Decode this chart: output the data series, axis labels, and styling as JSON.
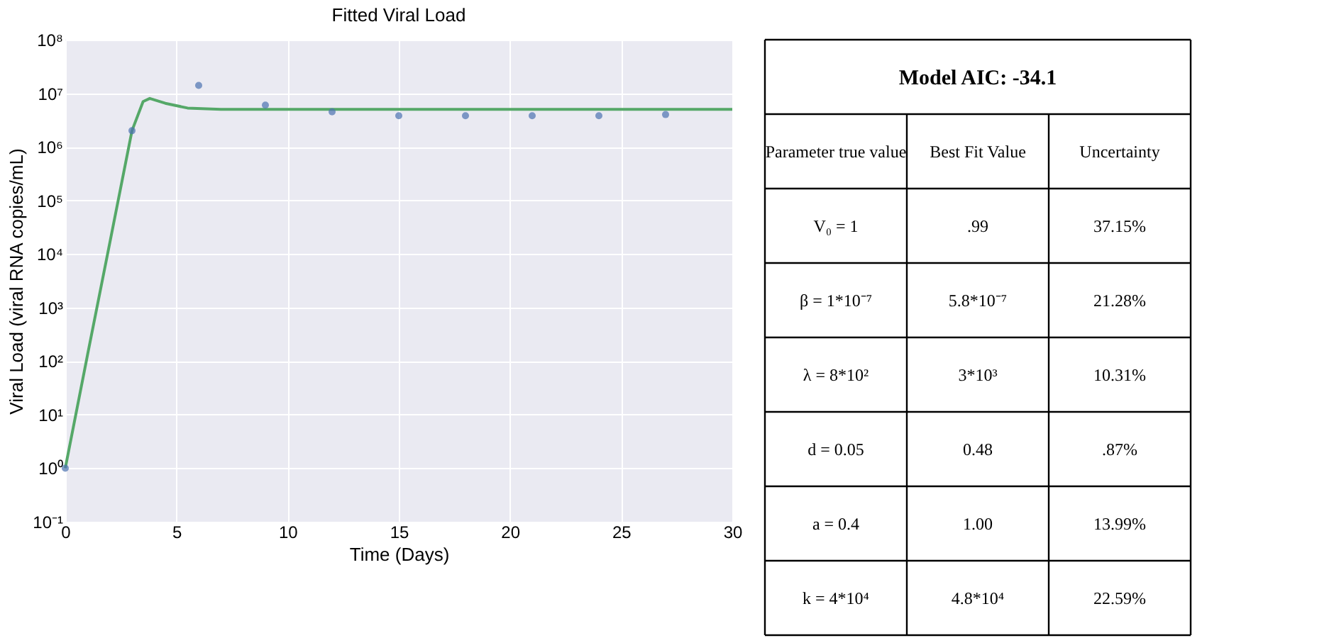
{
  "chart_data": [
    {
      "type": "line",
      "title": "Fitted Viral Load",
      "xlabel": "Time (Days)",
      "ylabel": "Viral Load (viral RNA copies/mL)",
      "log": true,
      "grid": true,
      "xlim": [
        0,
        30
      ],
      "xticks": [
        0,
        5,
        10,
        15,
        20,
        25,
        30
      ],
      "ylim": [
        0.1,
        100000000
      ],
      "yticks": [
        {
          "value": 0.1,
          "label": "10⁻¹"
        },
        {
          "value": 1,
          "label": "10⁰"
        },
        {
          "value": 10,
          "label": "10¹"
        },
        {
          "value": 100,
          "label": "10²"
        },
        {
          "value": 1000,
          "label": "10³"
        },
        {
          "value": 10000,
          "label": "10⁴"
        },
        {
          "value": 100000,
          "label": "10⁵"
        },
        {
          "value": 1000000,
          "label": "10⁶"
        },
        {
          "value": 10000000,
          "label": "10⁷"
        },
        {
          "value": 100000000,
          "label": "10⁸"
        }
      ],
      "series": [
        {
          "type": "line",
          "color": "#55a868",
          "line_style": "solid",
          "x": [
            0,
            1,
            2,
            3,
            3.5,
            3.8,
            4.5,
            5.5,
            7,
            10,
            30
          ],
          "values": [
            1,
            130,
            16000,
            2000000,
            7000000,
            8000000,
            6500000,
            5300000,
            5000000,
            5000000,
            5000000
          ]
        },
        {
          "type": "scatter",
          "color": "#4c72b0",
          "marker": "circle",
          "x": [
            0,
            3,
            6,
            9,
            12,
            15,
            18,
            21,
            24,
            27
          ],
          "values": [
            1,
            2000000,
            14000000,
            6000000,
            4500000,
            3800000,
            3800000,
            3800000,
            3800000,
            4000000
          ]
        }
      ]
    },
    {
      "type": "other",
      "title": "Model AIC: -34.1",
      "annotations": [
        "Parameter true value",
        "Best Fit Value",
        "Uncertainty",
        "V₀ = 1",
        ".99",
        "37.15%",
        "β = 1*10⁻⁷",
        "5.8*10⁻⁷",
        "21.28%",
        "λ = 8*10²",
        "3*10³",
        "10.31%",
        "d = 0.05",
        "0.48",
        ".87%",
        "a = 0.4",
        "1.00",
        "13.99%",
        "k = 4*10⁴",
        "4.8*10⁴",
        "22.59%"
      ]
    }
  ]
}
